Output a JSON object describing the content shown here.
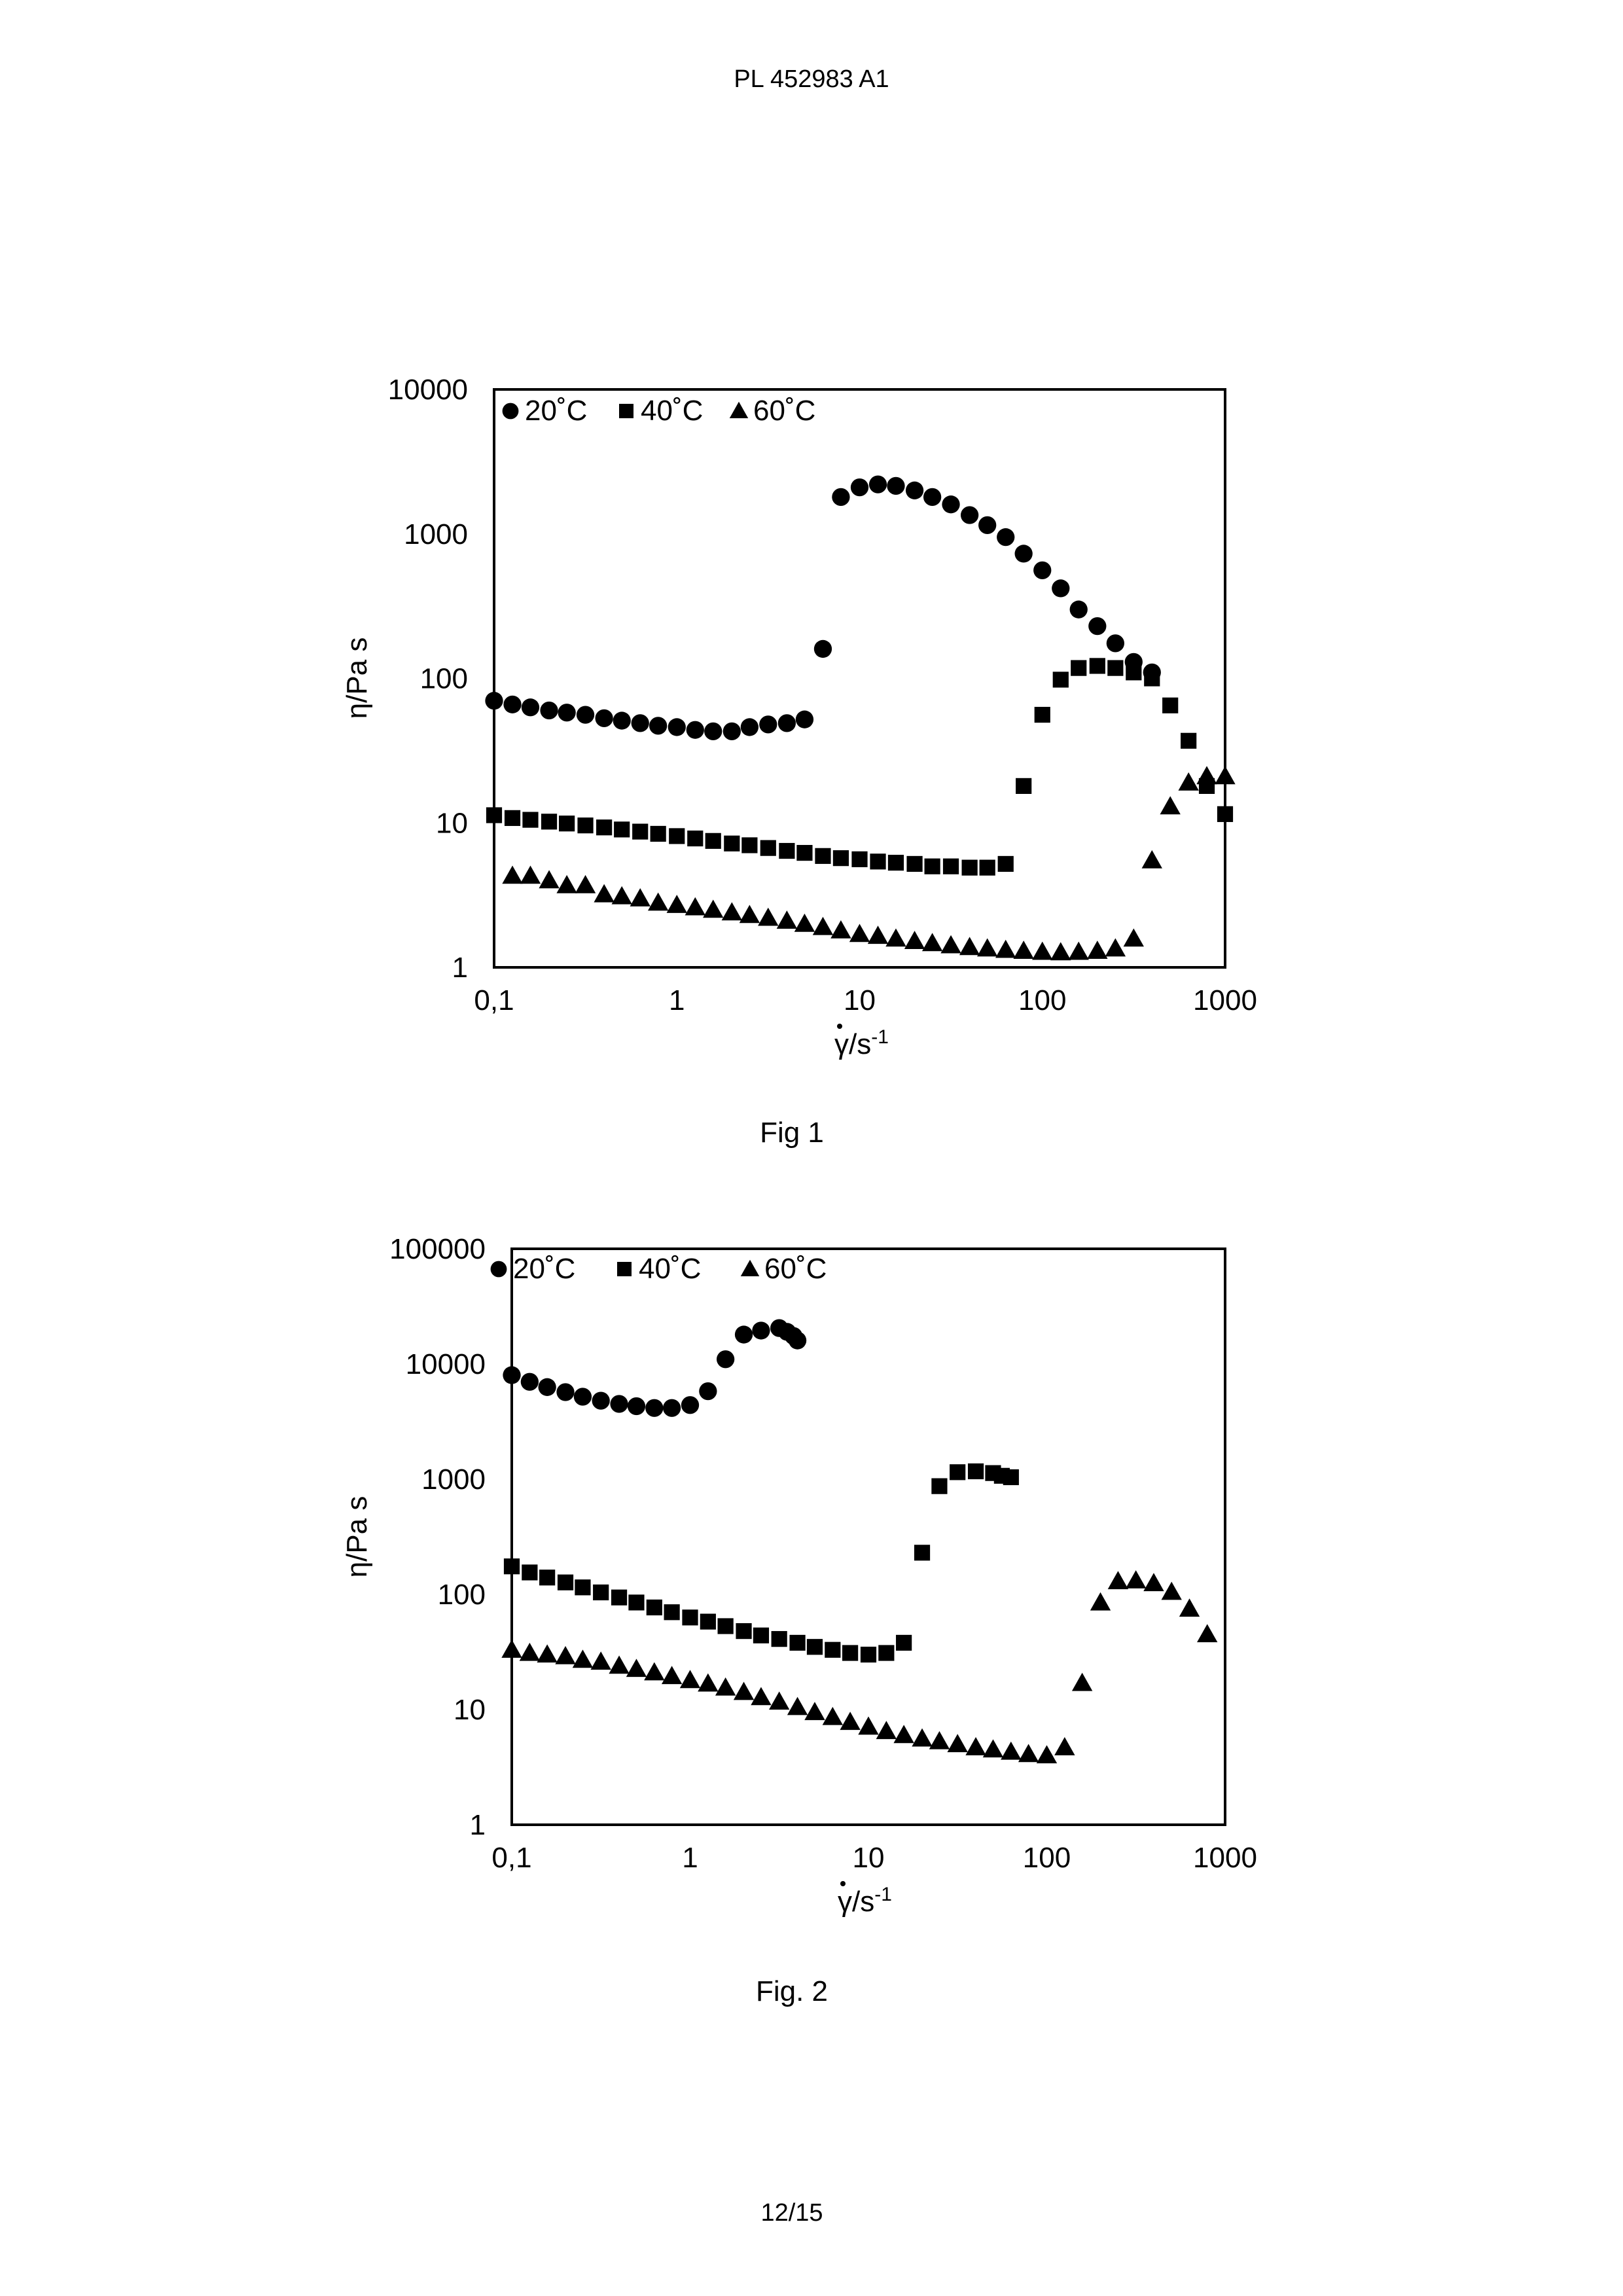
{
  "document": {
    "header": "PL 452983 A1",
    "page_number": "12/15"
  },
  "chart_data": [
    {
      "type": "scatter",
      "caption": "Fig 1",
      "xscale": "log",
      "yscale": "log",
      "xlim": [
        0.1,
        1000
      ],
      "ylim": [
        1,
        10000
      ],
      "xticks": [
        0.1,
        1,
        10,
        100,
        1000
      ],
      "xtick_labels": [
        "0,1",
        "1",
        "10",
        "100",
        "1000"
      ],
      "yticks": [
        1,
        10,
        100,
        1000,
        10000
      ],
      "ytick_labels": [
        "1",
        "10",
        "100",
        "1000",
        "10000"
      ],
      "xlabel": "γ̇/s-1",
      "xlabel_main": "γ/s",
      "xlabel_sup": "-1",
      "ylabel": "η/Pa s",
      "legend_position": "top-left",
      "series": [
        {
          "name": "20˚C",
          "marker": "circle",
          "points": [
            [
              0.1,
              70
            ],
            [
              0.126,
              66
            ],
            [
              0.158,
              63
            ],
            [
              0.2,
              60
            ],
            [
              0.25,
              58
            ],
            [
              0.316,
              56
            ],
            [
              0.4,
              53
            ],
            [
              0.5,
              51
            ],
            [
              0.63,
              49
            ],
            [
              0.79,
              47
            ],
            [
              1.0,
              46
            ],
            [
              1.26,
              44
            ],
            [
              1.58,
              43
            ],
            [
              2.0,
              43
            ],
            [
              2.5,
              46
            ],
            [
              3.16,
              48
            ],
            [
              4.0,
              49
            ],
            [
              5.0,
              52
            ],
            [
              6.3,
              160
            ],
            [
              7.9,
              1800
            ],
            [
              10,
              2100
            ],
            [
              12.6,
              2200
            ],
            [
              15.8,
              2150
            ],
            [
              20,
              2000
            ],
            [
              25,
              1800
            ],
            [
              31.6,
              1600
            ],
            [
              40,
              1350
            ],
            [
              50,
              1150
            ],
            [
              63,
              950
            ],
            [
              79,
              730
            ],
            [
              100,
              560
            ],
            [
              126,
              420
            ],
            [
              158,
              300
            ],
            [
              200,
              230
            ],
            [
              251,
              175
            ],
            [
              316,
              130
            ],
            [
              398,
              110
            ]
          ]
        },
        {
          "name": "40˚C",
          "marker": "square",
          "points": [
            [
              0.1,
              11.3
            ],
            [
              0.126,
              10.8
            ],
            [
              0.158,
              10.5
            ],
            [
              0.2,
              10.2
            ],
            [
              0.25,
              9.9
            ],
            [
              0.316,
              9.6
            ],
            [
              0.4,
              9.3
            ],
            [
              0.5,
              9.0
            ],
            [
              0.63,
              8.7
            ],
            [
              0.79,
              8.4
            ],
            [
              1.0,
              8.1
            ],
            [
              1.26,
              7.8
            ],
            [
              1.58,
              7.5
            ],
            [
              2.0,
              7.2
            ],
            [
              2.5,
              7.0
            ],
            [
              3.16,
              6.7
            ],
            [
              4.0,
              6.4
            ],
            [
              5.0,
              6.2
            ],
            [
              6.3,
              5.9
            ],
            [
              7.9,
              5.7
            ],
            [
              10,
              5.6
            ],
            [
              12.6,
              5.4
            ],
            [
              15.8,
              5.3
            ],
            [
              20,
              5.2
            ],
            [
              25,
              5.0
            ],
            [
              31.6,
              5.0
            ],
            [
              40,
              4.9
            ],
            [
              50,
              4.9
            ],
            [
              63,
              5.2
            ],
            [
              79,
              18
            ],
            [
              100,
              56
            ],
            [
              126,
              98
            ],
            [
              158,
              118
            ],
            [
              200,
              122
            ],
            [
              251,
              118
            ],
            [
              316,
              110
            ],
            [
              398,
              100
            ],
            [
              501,
              65
            ],
            [
              631,
              37
            ],
            [
              794,
              18
            ],
            [
              1000,
              11.5
            ]
          ]
        },
        {
          "name": "60˚C",
          "marker": "triangle",
          "points": [
            [
              0.126,
              4.3
            ],
            [
              0.158,
              4.3
            ],
            [
              0.2,
              4.0
            ],
            [
              0.25,
              3.7
            ],
            [
              0.316,
              3.7
            ],
            [
              0.4,
              3.2
            ],
            [
              0.5,
              3.1
            ],
            [
              0.63,
              3.0
            ],
            [
              0.79,
              2.8
            ],
            [
              1.0,
              2.7
            ],
            [
              1.26,
              2.6
            ],
            [
              1.58,
              2.5
            ],
            [
              2.0,
              2.4
            ],
            [
              2.5,
              2.3
            ],
            [
              3.16,
              2.2
            ],
            [
              4.0,
              2.1
            ],
            [
              5.0,
              2.0
            ],
            [
              6.3,
              1.9
            ],
            [
              7.9,
              1.8
            ],
            [
              10,
              1.7
            ],
            [
              12.6,
              1.65
            ],
            [
              15.8,
              1.58
            ],
            [
              20,
              1.52
            ],
            [
              25,
              1.47
            ],
            [
              31.6,
              1.42
            ],
            [
              40,
              1.38
            ],
            [
              50,
              1.35
            ],
            [
              63,
              1.32
            ],
            [
              79,
              1.3
            ],
            [
              100,
              1.28
            ],
            [
              126,
              1.27
            ],
            [
              158,
              1.28
            ],
            [
              200,
              1.3
            ],
            [
              251,
              1.35
            ],
            [
              316,
              1.58
            ],
            [
              398,
              5.5
            ],
            [
              501,
              13
            ],
            [
              631,
              19
            ],
            [
              794,
              21
            ],
            [
              1000,
              21
            ]
          ]
        }
      ]
    },
    {
      "type": "scatter",
      "caption": "Fig. 2",
      "xscale": "log",
      "yscale": "log",
      "xlim": [
        0.1,
        1000
      ],
      "ylim": [
        1,
        100000
      ],
      "xticks": [
        0.1,
        1,
        10,
        100,
        1000
      ],
      "xtick_labels": [
        "0,1",
        "1",
        "10",
        "100",
        "1000"
      ],
      "yticks": [
        1,
        10,
        100,
        1000,
        10000,
        100000
      ],
      "ytick_labels": [
        "1",
        "10",
        "100",
        "1000",
        "10000",
        "100000"
      ],
      "xlabel": "γ̇/s-1",
      "xlabel_main": "γ/s",
      "xlabel_sup": "-1",
      "ylabel": "η/Pa s",
      "legend_position": "top-left",
      "series": [
        {
          "name": "20˚C",
          "marker": "circle",
          "points": [
            [
              0.1,
              8000
            ],
            [
              0.126,
              7000
            ],
            [
              0.158,
              6300
            ],
            [
              0.2,
              5700
            ],
            [
              0.25,
              5200
            ],
            [
              0.316,
              4800
            ],
            [
              0.4,
              4500
            ],
            [
              0.5,
              4300
            ],
            [
              0.63,
              4150
            ],
            [
              0.79,
              4150
            ],
            [
              1.0,
              4400
            ],
            [
              1.26,
              5800
            ],
            [
              1.58,
              11000
            ],
            [
              2.0,
              18000
            ],
            [
              2.5,
              19500
            ],
            [
              3.16,
              20500
            ],
            [
              3.5,
              19000
            ],
            [
              3.8,
              17500
            ],
            [
              4.0,
              16000
            ]
          ]
        },
        {
          "name": "40˚C",
          "marker": "square",
          "points": [
            [
              0.1,
              175
            ],
            [
              0.126,
              155
            ],
            [
              0.158,
              140
            ],
            [
              0.2,
              127
            ],
            [
              0.25,
              115
            ],
            [
              0.316,
              104
            ],
            [
              0.4,
              94
            ],
            [
              0.5,
              85
            ],
            [
              0.63,
              77
            ],
            [
              0.79,
              70
            ],
            [
              1.0,
              63
            ],
            [
              1.26,
              58
            ],
            [
              1.58,
              53
            ],
            [
              2.0,
              48
            ],
            [
              2.5,
              44
            ],
            [
              3.16,
              41
            ],
            [
              4.0,
              38
            ],
            [
              5.0,
              35
            ],
            [
              6.3,
              33
            ],
            [
              7.9,
              31
            ],
            [
              10,
              30
            ],
            [
              12.6,
              31
            ],
            [
              15.8,
              38
            ],
            [
              20,
              230
            ],
            [
              25,
              870
            ],
            [
              31.6,
              1150
            ],
            [
              40,
              1170
            ],
            [
              50,
              1130
            ],
            [
              56,
              1070
            ],
            [
              63,
              1040
            ]
          ]
        },
        {
          "name": "60˚C",
          "marker": "triangle",
          "points": [
            [
              0.1,
              33
            ],
            [
              0.126,
              31
            ],
            [
              0.158,
              30
            ],
            [
              0.2,
              29
            ],
            [
              0.25,
              27
            ],
            [
              0.316,
              26
            ],
            [
              0.4,
              24
            ],
            [
              0.5,
              22.5
            ],
            [
              0.63,
              21
            ],
            [
              0.79,
              19.5
            ],
            [
              1.0,
              18
            ],
            [
              1.26,
              16.8
            ],
            [
              1.58,
              15.5
            ],
            [
              2.0,
              14.2
            ],
            [
              2.5,
              12.8
            ],
            [
              3.16,
              11.7
            ],
            [
              4.0,
              10.5
            ],
            [
              5.0,
              9.5
            ],
            [
              6.3,
              8.6
            ],
            [
              7.9,
              7.8
            ],
            [
              10,
              7.1
            ],
            [
              12.6,
              6.5
            ],
            [
              15.8,
              6.0
            ],
            [
              20,
              5.6
            ],
            [
              25,
              5.3
            ],
            [
              31.6,
              5.0
            ],
            [
              40,
              4.7
            ],
            [
              50,
              4.5
            ],
            [
              63,
              4.3
            ],
            [
              79,
              4.1
            ],
            [
              100,
              4.0
            ],
            [
              126,
              4.7
            ],
            [
              158,
              17
            ],
            [
              200,
              85
            ],
            [
              251,
              130
            ],
            [
              316,
              132
            ],
            [
              398,
              125
            ],
            [
              501,
              105
            ],
            [
              631,
              75
            ],
            [
              794,
              45
            ]
          ]
        }
      ]
    }
  ]
}
